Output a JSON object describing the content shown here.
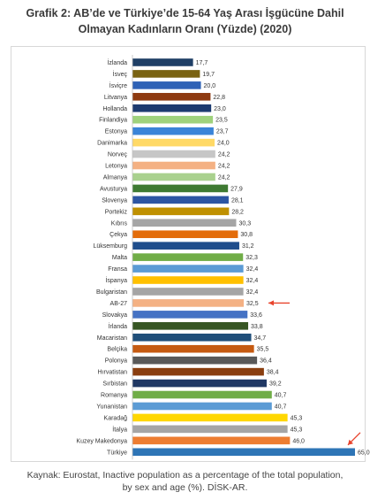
{
  "title_line1": "Grafik 2: AB’de ve Türkiye’de 15-64 Yaş Arası İşgücüne Dahil",
  "title_line2": "Olmayan Kadınların Oranı (Yüzde) (2020)",
  "source_line1": "Kaynak: Eurostat, Inactive population as a percentage of the total population,",
  "source_line2": "by sex and age (%). DİSK-AR.",
  "chart_data": {
    "type": "bar",
    "orientation": "horizontal",
    "categories": [
      "İzlanda",
      "İsveç",
      "İsviçre",
      "Litvanya",
      "Hollanda",
      "Finlandiya",
      "Estonya",
      "Danimarka",
      "Norveç",
      "Letonya",
      "Almanya",
      "Avusturya",
      "Slovenya",
      "Portekiz",
      "Kıbrıs",
      "Çekya",
      "Lüksemburg",
      "Malta",
      "Fransa",
      "İspanya",
      "Bulgaristan",
      "AB-27",
      "Slovakya",
      "İrlanda",
      "Macaristan",
      "Belçika",
      "Polonya",
      "Hırvatistan",
      "Sırbistan",
      "Romanya",
      "Yunanistan",
      "Karadağ",
      "İtalya",
      "Kuzey Makedonya",
      "Türkiye"
    ],
    "values": [
      17.7,
      19.7,
      20.0,
      22.8,
      23.0,
      23.5,
      23.7,
      24.0,
      24.2,
      24.2,
      24.2,
      27.9,
      28.1,
      28.2,
      30.3,
      30.8,
      31.2,
      32.3,
      32.4,
      32.4,
      32.4,
      32.5,
      33.6,
      33.8,
      34.7,
      35.5,
      36.4,
      38.4,
      39.2,
      40.7,
      40.7,
      45.3,
      45.3,
      46.0,
      65.0
    ],
    "value_labels": [
      "17,7",
      "19,7",
      "20,0",
      "22,8",
      "23,0",
      "23,5",
      "23,7",
      "24,0",
      "24,2",
      "24,2",
      "24,2",
      "27,9",
      "28,1",
      "28,2",
      "30,3",
      "30,8",
      "31,2",
      "32,3",
      "32,4",
      "32,4",
      "32,4",
      "32,5",
      "33,6",
      "33,8",
      "34,7",
      "35,5",
      "36,4",
      "38,4",
      "39,2",
      "40,7",
      "40,7",
      "45,3",
      "45,3",
      "46,0",
      "65,0"
    ],
    "colors": [
      "#1f3f66",
      "#7a6312",
      "#2f62b6",
      "#8e3a10",
      "#1d3b70",
      "#9fd27c",
      "#3a84d8",
      "#ffd966",
      "#c6c6c6",
      "#f4b183",
      "#a9d18e",
      "#3e7a32",
      "#2c55a3",
      "#bf9000",
      "#a5a5a5",
      "#e36c0a",
      "#1e4d8c",
      "#70ad47",
      "#5b9bd5",
      "#ffc000",
      "#a5a5a5",
      "#f4b183",
      "#4472c4",
      "#375623",
      "#1f4e79",
      "#c55a11",
      "#595959",
      "#8a3e0f",
      "#203864",
      "#70ad47",
      "#5b9bd5",
      "#ffd700",
      "#a5a5a5",
      "#ed7d31",
      "#2e75b6"
    ],
    "highlighted": [
      "AB-27",
      "Türkiye"
    ],
    "arrow_color": "#e8432c",
    "xlim": [
      0,
      65
    ],
    "grid": false
  }
}
